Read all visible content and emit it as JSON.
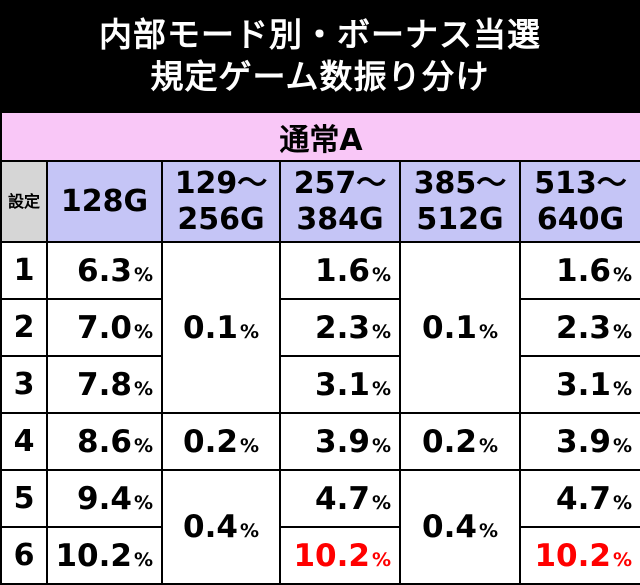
{
  "title": {
    "line1": "内部モード別・ボーナス当選",
    "line2": "規定ゲーム数振り分け"
  },
  "mode": "通常A",
  "header": {
    "setting": "設定",
    "col1": "128G",
    "col2a": "129～",
    "col2b": "256G",
    "col3a": "257～",
    "col3b": "384G",
    "col4a": "385～",
    "col4b": "512G",
    "col5a": "513～",
    "col5b": "640G"
  },
  "percent_sign": "%",
  "rows": {
    "s1": "1",
    "s2": "2",
    "s3": "3",
    "s4": "4",
    "s5": "5",
    "s6": "6",
    "c128_1": "6.3",
    "c128_2": "7.0",
    "c128_3": "7.8",
    "c128_4": "8.6",
    "c128_5": "9.4",
    "c128_6": "10.2",
    "c256_123": "0.1",
    "c256_4": "0.2",
    "c256_56": "0.4",
    "c384_1": "1.6",
    "c384_2": "2.3",
    "c384_3": "3.1",
    "c384_4": "3.9",
    "c384_5": "4.7",
    "c384_6": "10.2",
    "c512_123": "0.1",
    "c512_4": "0.2",
    "c512_56": "0.4",
    "c640_1": "1.6",
    "c640_2": "2.3",
    "c640_3": "3.1",
    "c640_4": "3.9",
    "c640_5": "4.7",
    "c640_6": "10.2"
  },
  "colors": {
    "title_bg": "#000000",
    "mode_bg": "#f9c7f7",
    "header_bg": "#c5c5f6",
    "setting_header_bg": "#d6d6d6",
    "highlight_text": "#ff0000"
  }
}
